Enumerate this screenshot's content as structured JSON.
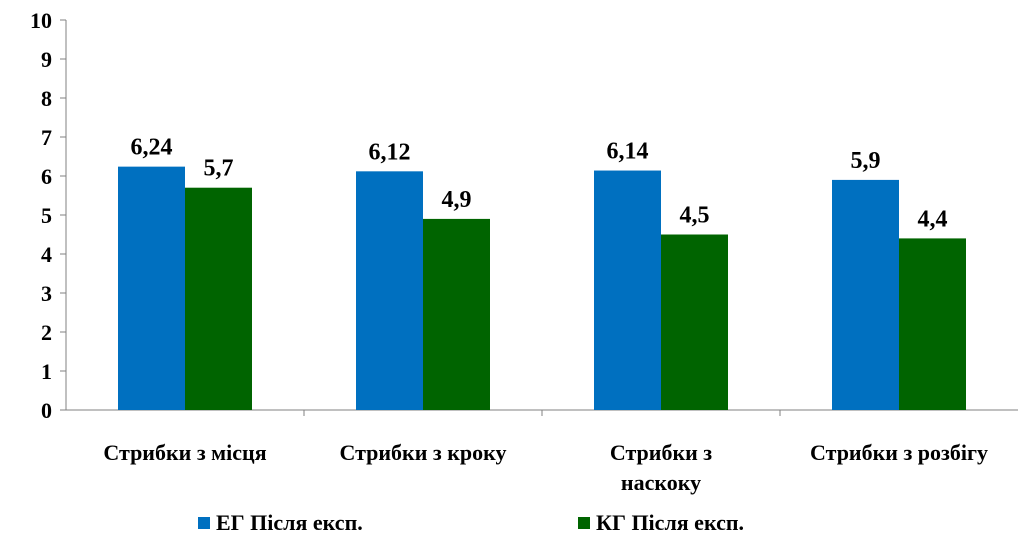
{
  "chart_data": {
    "type": "bar",
    "categories": [
      [
        "Стрибки з місця"
      ],
      [
        "Стрибки з кроку"
      ],
      [
        "Стрибки з",
        "наскоку"
      ],
      [
        "Стрибки з розбігу"
      ]
    ],
    "series": [
      {
        "name": "ЕГ Після експ.",
        "values": [
          6.24,
          6.12,
          6.14,
          5.9
        ],
        "labels": [
          "6,24",
          "6,12",
          "6,14",
          "5,9"
        ],
        "color": "#0070c0"
      },
      {
        "name": "КГ Після експ.",
        "values": [
          5.7,
          4.9,
          4.5,
          4.4
        ],
        "labels": [
          "5,7",
          "4,9",
          "4,5",
          "4,4"
        ],
        "color": "#006400"
      }
    ],
    "ylim": [
      0,
      10
    ],
    "yticks": [
      "0",
      "1",
      "2",
      "3",
      "4",
      "5",
      "6",
      "7",
      "8",
      "9",
      "10"
    ],
    "grid": false,
    "legend": "bottom"
  }
}
